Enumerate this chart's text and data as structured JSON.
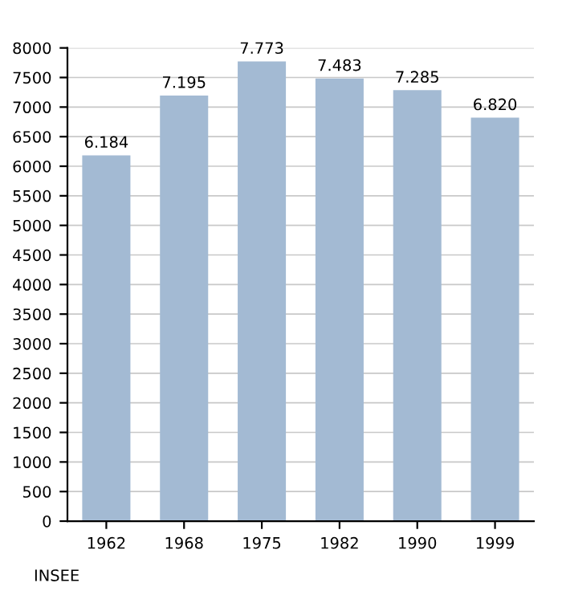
{
  "chart_data": {
    "type": "bar",
    "categories": [
      "1962",
      "1968",
      "1975",
      "1982",
      "1990",
      "1999"
    ],
    "values": [
      6184,
      7195,
      7773,
      7483,
      7285,
      6820
    ],
    "value_labels": [
      "6.184",
      "7.195",
      "7.773",
      "7.483",
      "7.285",
      "6.820"
    ],
    "color": "#a3bad3",
    "ylim": [
      0,
      8000
    ],
    "yticks": [
      0,
      500,
      1000,
      1500,
      2000,
      2500,
      3000,
      3500,
      4000,
      4500,
      5000,
      5500,
      6000,
      6500,
      7000,
      7500,
      8000
    ],
    "grid": "y",
    "annotations": [
      "INSEE"
    ]
  }
}
